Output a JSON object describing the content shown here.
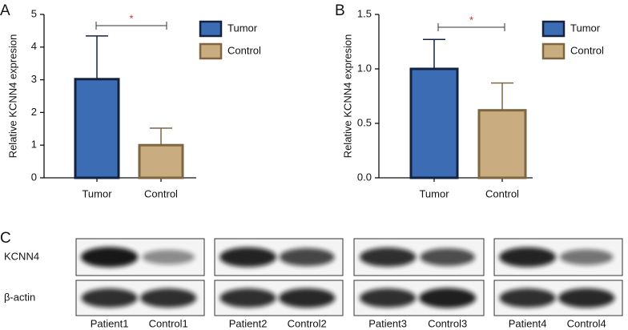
{
  "chart_data": [
    {
      "type": "bar",
      "panel": "A",
      "ylabel": "Relative KCNN4 expresion",
      "categories": [
        "Tumor",
        "Control"
      ],
      "series": [
        {
          "name": "Tumor",
          "color": "#3b6cb4",
          "edge": "#13233f",
          "values": [
            3.02,
            null
          ],
          "errors": [
            1.32,
            null
          ]
        },
        {
          "name": "Control",
          "color": "#c9ad80",
          "edge": "#7d6642",
          "values": [
            null,
            1.0
          ],
          "errors": [
            null,
            0.52
          ]
        }
      ],
      "ylim": [
        0,
        5
      ],
      "yticks": [
        0,
        1,
        2,
        3,
        4,
        5
      ],
      "annotation": "*"
    },
    {
      "type": "bar",
      "panel": "B",
      "ylabel": "Relative KCNN4 expresion",
      "categories": [
        "Tumor",
        "Control"
      ],
      "series": [
        {
          "name": "Tumor",
          "color": "#3b6cb4",
          "edge": "#13233f",
          "values": [
            1.0,
            null
          ],
          "errors": [
            0.27,
            null
          ]
        },
        {
          "name": "Control",
          "color": "#c9ad80",
          "edge": "#7d6642",
          "values": [
            null,
            0.62
          ],
          "errors": [
            null,
            0.25
          ]
        }
      ],
      "ylim": [
        0,
        1.5
      ],
      "yticks": [
        {
          "value": 0,
          "label": "0.0"
        },
        0.5,
        {
          "value": 1,
          "label": "1.0"
        },
        1.5
      ],
      "annotation": "*"
    }
  ],
  "blot": {
    "panel": "C",
    "rows": [
      "KCNN4",
      "β-actin"
    ],
    "lanes": [
      "Patient1",
      "Control1",
      "Patient2",
      "Control2",
      "Patient3",
      "Control3",
      "Patient4",
      "Control4"
    ]
  }
}
